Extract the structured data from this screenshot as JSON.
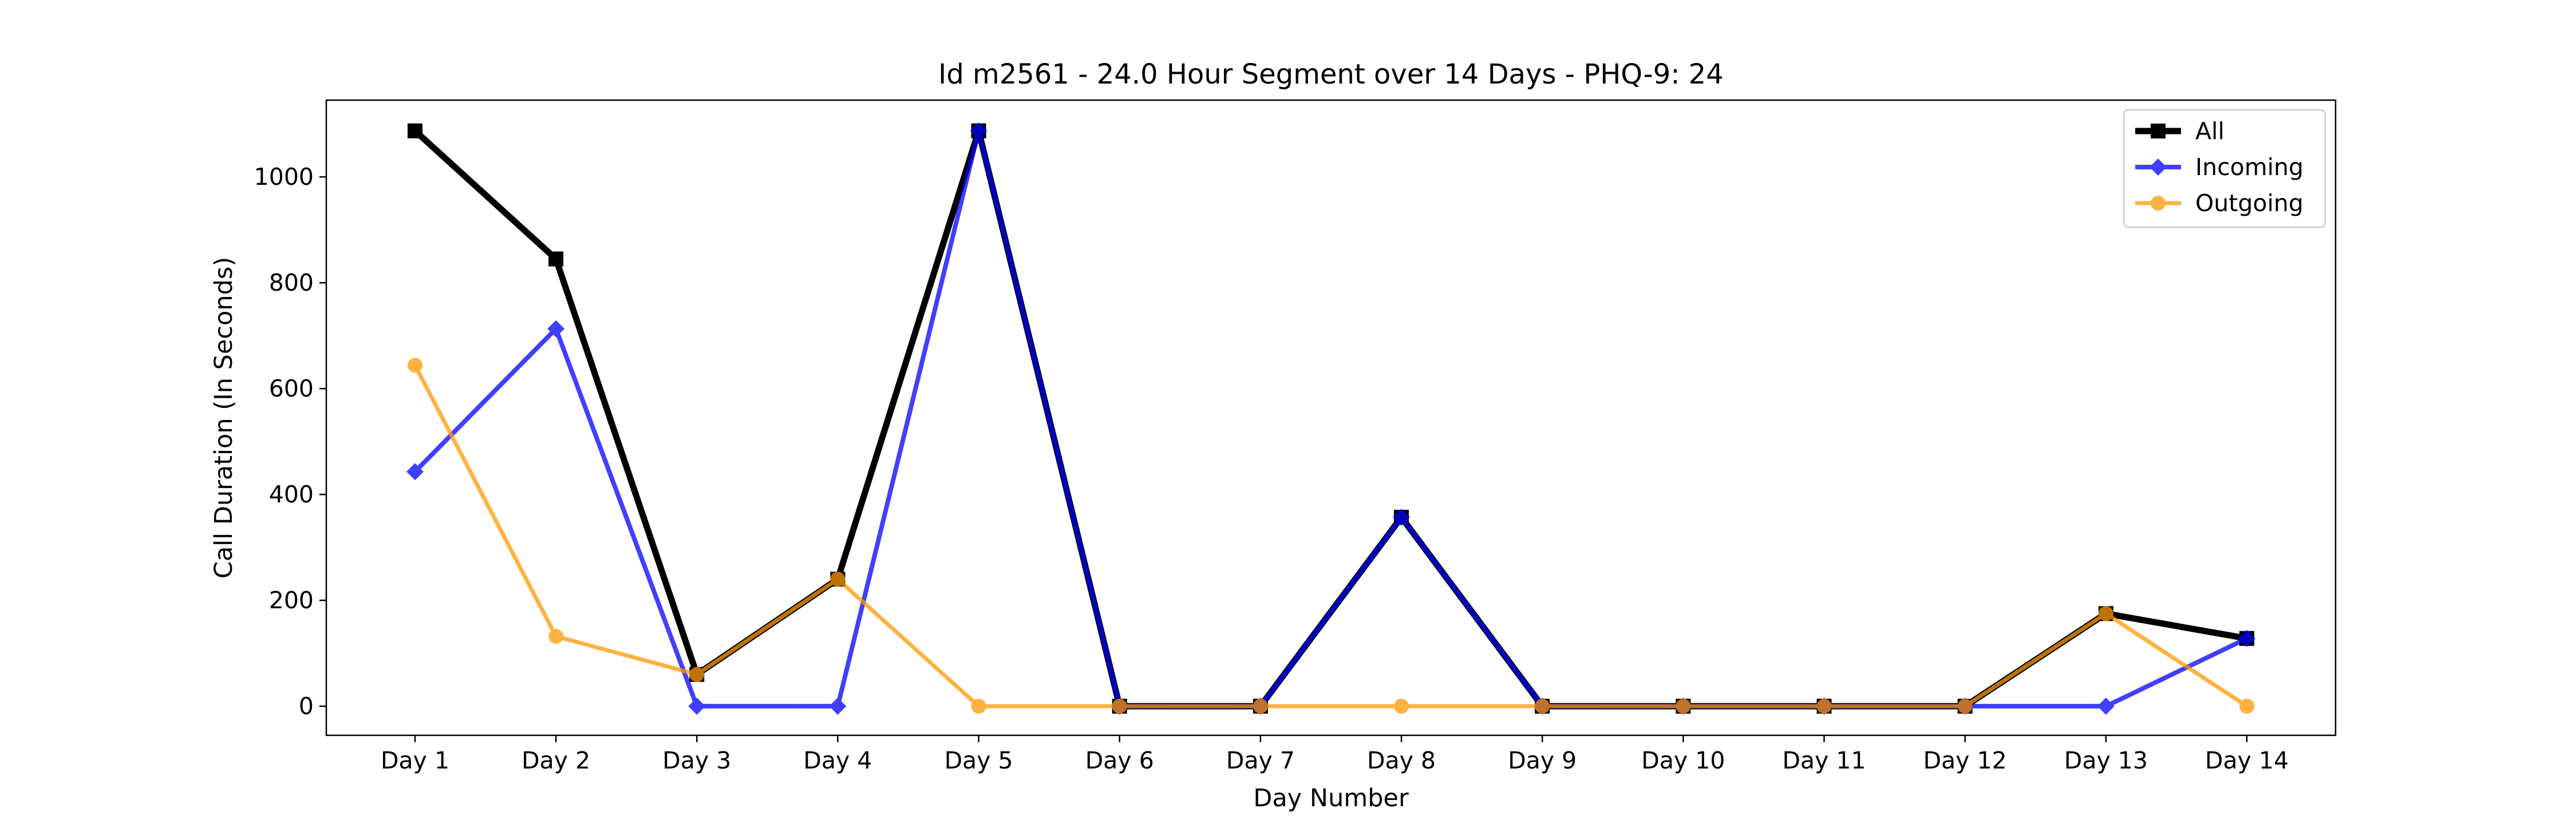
{
  "chart_data": {
    "type": "line",
    "title": "Id m2561 - 24.0 Hour Segment over 14 Days - PHQ-9: 24",
    "xlabel": "Day Number",
    "ylabel": "Call Duration (In Seconds)",
    "categories": [
      "Day 1",
      "Day 2",
      "Day 3",
      "Day 4",
      "Day 5",
      "Day 6",
      "Day 7",
      "Day 8",
      "Day 9",
      "Day 10",
      "Day 11",
      "Day 12",
      "Day 13",
      "Day 14"
    ],
    "y_ticks": [
      0,
      200,
      400,
      600,
      800,
      1000
    ],
    "ylim": [
      -55,
      1145
    ],
    "grid": false,
    "legend_position": "top-right",
    "series": [
      {
        "name": "All",
        "color": "#000000",
        "marker": "square",
        "values": [
          1087,
          845,
          60,
          240,
          1087,
          0,
          0,
          357,
          0,
          0,
          0,
          0,
          175,
          128
        ]
      },
      {
        "name": "Incoming",
        "color": "#0000ff",
        "marker": "diamond",
        "values": [
          443,
          713,
          0,
          0,
          1087,
          0,
          0,
          357,
          0,
          0,
          0,
          0,
          0,
          128
        ]
      },
      {
        "name": "Outgoing",
        "color": "#ff9900",
        "marker": "circle",
        "values": [
          644,
          132,
          60,
          240,
          0,
          0,
          0,
          0,
          0,
          0,
          0,
          0,
          175,
          0
        ]
      }
    ]
  }
}
